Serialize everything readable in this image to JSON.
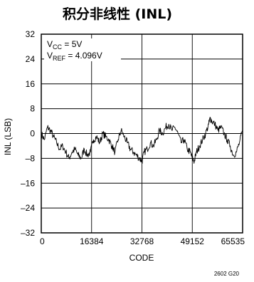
{
  "chart_data": {
    "type": "line",
    "title": "积分非线性 (INL)",
    "xlabel": "CODE",
    "ylabel": "INL (LSB)",
    "xlim": [
      0,
      65535
    ],
    "ylim": [
      -32,
      32
    ],
    "grid": true,
    "x_ticks": [
      0,
      16384,
      32768,
      49152,
      65535
    ],
    "x_tick_labels": [
      "0",
      "16384",
      "32768",
      "49152",
      "65535"
    ],
    "y_ticks": [
      32,
      24,
      16,
      8,
      0,
      -8,
      -16,
      -24,
      -32
    ],
    "y_tick_labels": [
      "32",
      "24",
      "16",
      "8",
      "0",
      "–8",
      "–16",
      "–24",
      "–32"
    ],
    "annotations": {
      "vcc": {
        "main": "V",
        "sub": "CC",
        "rest": " = 5V"
      },
      "vref": {
        "main": "V",
        "sub": "REF",
        "rest": " = 4.096V"
      }
    },
    "figure_id": "2602 G20",
    "series": [
      {
        "x": [
          0,
          1000,
          2000,
          3000,
          4000,
          5000,
          6000,
          7000,
          8000,
          9000,
          10000,
          11000,
          12000,
          13000,
          14000,
          15000,
          16000,
          17000,
          18000,
          19000,
          20000,
          21000,
          22000,
          23000,
          24000,
          25000,
          26000,
          27000,
          28000,
          29000,
          30000,
          31000,
          32000,
          32768,
          33500,
          34500,
          35500,
          36500,
          37500,
          38500,
          39500,
          40500,
          41500,
          42500,
          43500,
          44500,
          45500,
          46500,
          47500,
          48500,
          49152,
          49800,
          50500,
          51500,
          52500,
          53500,
          54500,
          55000,
          55500,
          56500,
          57500,
          58500,
          59500,
          60500,
          61500,
          62500,
          63500,
          64500,
          65535
        ],
        "values": [
          0,
          -2,
          2,
          1,
          -1,
          -3,
          -5,
          -4,
          -6,
          -8,
          -6,
          -5,
          -7,
          -8,
          -5,
          -7,
          -6,
          -2,
          -1,
          -3,
          0,
          -1,
          -2,
          -4,
          -6,
          -2,
          1,
          -1,
          -3,
          -5,
          -6,
          -7,
          -8,
          -9,
          -6,
          -5,
          -3,
          -4,
          -2,
          1,
          0,
          2,
          3,
          1,
          2,
          0,
          -3,
          -2,
          -5,
          -6,
          -8,
          -9,
          -6,
          -4,
          -2,
          0,
          3,
          5,
          4,
          3,
          1,
          2,
          0,
          -2,
          -4,
          -7,
          -6,
          -3,
          1
        ]
      }
    ]
  }
}
